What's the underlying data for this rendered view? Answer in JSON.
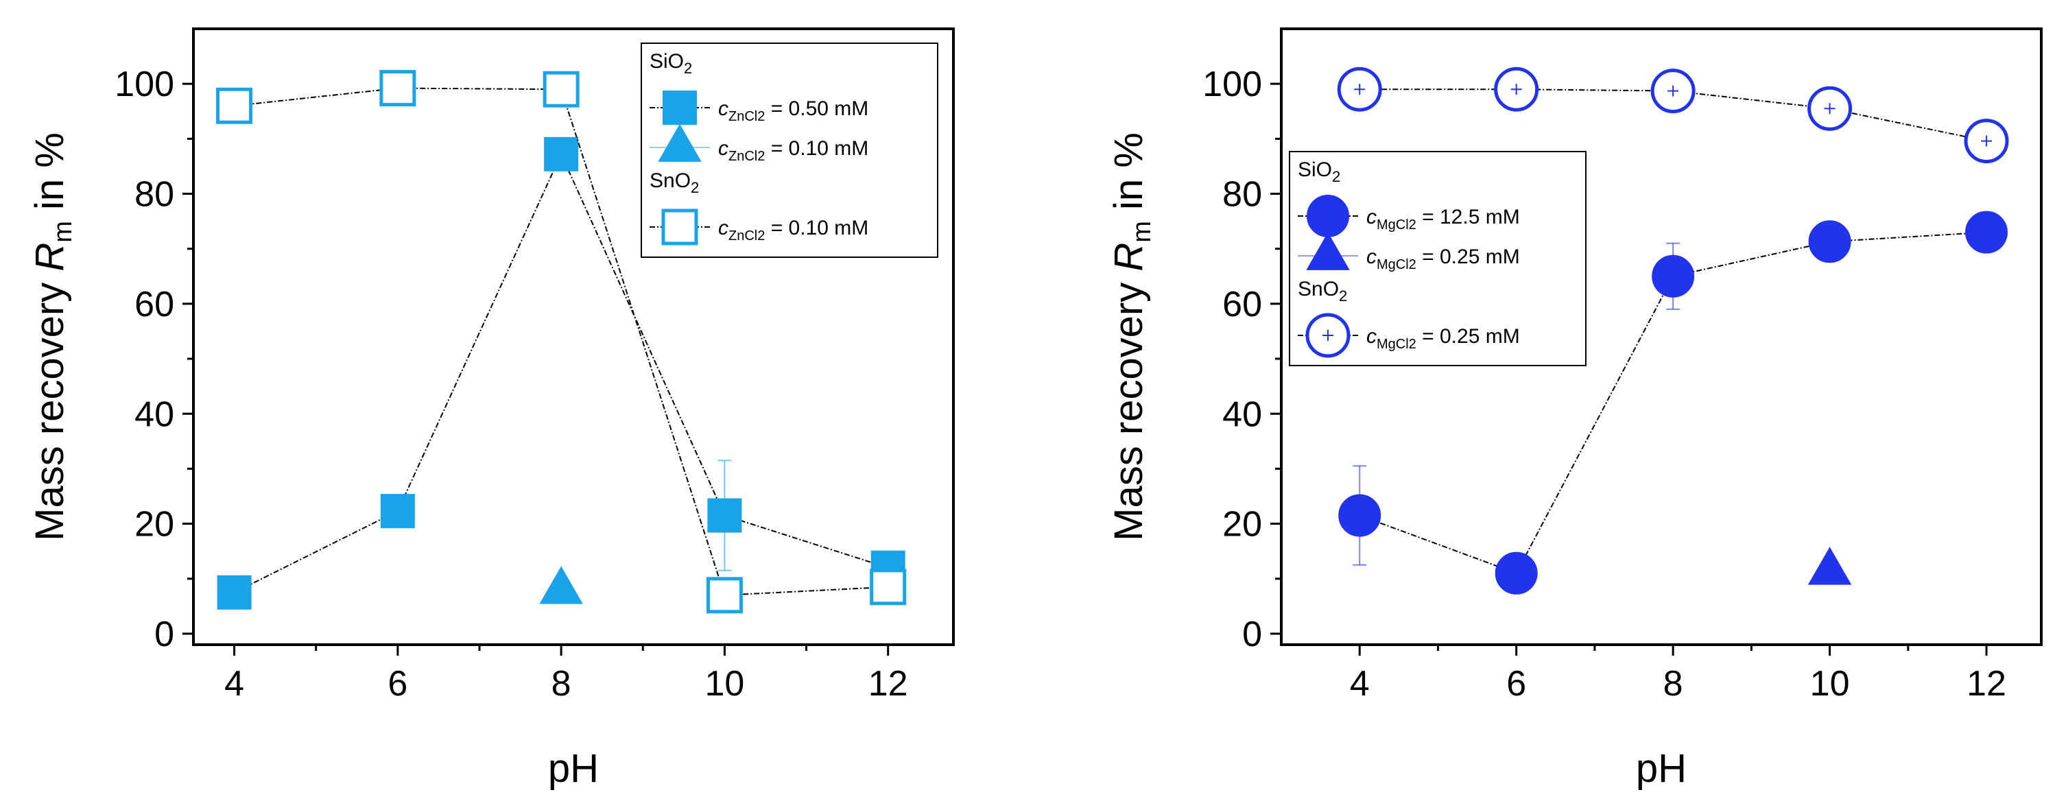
{
  "chart_data": [
    {
      "type": "scatter",
      "panel": "left",
      "xlabel": "pH",
      "ylabel": "Mass recovery R_m in %",
      "ylabel_parts": {
        "main": "Mass recovery ",
        "var": "R",
        "sub": "m",
        "tail": " in %"
      },
      "xlim": [
        3.5,
        12.8
      ],
      "ylim": [
        -2,
        110
      ],
      "xticks": [
        4,
        6,
        8,
        10,
        12
      ],
      "yticks": [
        0,
        20,
        40,
        60,
        80,
        100
      ],
      "color": "#1aa3e8",
      "legend_position": "top-right",
      "legend_groups": [
        "SiO2",
        "SnO2"
      ],
      "series": [
        {
          "name": "SiO2 c_ZnCl2 = 0.50 mM",
          "legend_label": {
            "var": "c",
            "sub": "ZnCl2",
            "text": " = 0.50 mM"
          },
          "group": "SiO2",
          "marker": "square-filled",
          "connected": true,
          "x": [
            4,
            6,
            8,
            10,
            12
          ],
          "y": [
            7.5,
            22.3,
            87.2,
            21.5,
            12.0
          ],
          "err": [
            0.5,
            0.5,
            0.8,
            10.0,
            1.5
          ]
        },
        {
          "name": "SiO2 c_ZnCl2 = 0.10 mM",
          "legend_label": {
            "var": "c",
            "sub": "ZnCl2",
            "text": " = 0.10 mM"
          },
          "group": "SiO2",
          "marker": "triangle-filled",
          "connected": false,
          "x": [
            8
          ],
          "y": [
            8.0
          ],
          "err": [
            0.5
          ]
        },
        {
          "name": "SnO2 c_ZnCl2 = 0.10 mM",
          "legend_label": {
            "var": "c",
            "sub": "ZnCl2",
            "text": " = 0.10 mM"
          },
          "group": "SnO2",
          "marker": "square-open",
          "connected": true,
          "x": [
            4,
            6,
            8,
            10,
            12
          ],
          "y": [
            96.0,
            99.2,
            99.0,
            7.0,
            8.5
          ],
          "err": [
            2.0,
            1.0,
            1.5,
            2.0,
            1.2
          ]
        }
      ]
    },
    {
      "type": "scatter",
      "panel": "right",
      "xlabel": "pH",
      "ylabel": "Mass recovery R_m in %",
      "ylabel_parts": {
        "main": "Mass recovery ",
        "var": "R",
        "sub": "m",
        "tail": " in %"
      },
      "xlim": [
        3.0,
        12.7
      ],
      "ylim": [
        -2,
        110
      ],
      "xticks": [
        4,
        6,
        8,
        10,
        12
      ],
      "yticks": [
        0,
        20,
        40,
        60,
        80,
        100
      ],
      "color": "#2233ee",
      "legend_position": "center-left",
      "legend_groups": [
        "SiO2",
        "SnO2"
      ],
      "series": [
        {
          "name": "SiO2 c_MgCl2 = 12.5 mM",
          "legend_label": {
            "var": "c",
            "sub": "MgCl2",
            "text": " = 12.5 mM"
          },
          "group": "SiO2",
          "marker": "circle-filled",
          "connected": true,
          "x": [
            4,
            6,
            8,
            10,
            12
          ],
          "y": [
            21.5,
            11.0,
            65.0,
            71.3,
            73.0
          ],
          "err": [
            9.0,
            0.5,
            6.0,
            0.8,
            0.5
          ]
        },
        {
          "name": "SiO2 c_MgCl2 = 0.25 mM",
          "legend_label": {
            "var": "c",
            "sub": "MgCl2",
            "text": " = 0.25 mM"
          },
          "group": "SiO2",
          "marker": "triangle-filled",
          "connected": false,
          "x": [
            10
          ],
          "y": [
            11.5
          ],
          "err": [
            1.5
          ]
        },
        {
          "name": "SnO2 c_MgCl2 = 0.25 mM",
          "legend_label": {
            "var": "c",
            "sub": "MgCl2",
            "text": " = 0.25 mM"
          },
          "group": "SnO2",
          "marker": "circle-open",
          "connected": true,
          "x": [
            4,
            6,
            8,
            10,
            12
          ],
          "y": [
            99.0,
            99.0,
            98.7,
            95.5,
            89.6
          ],
          "err": [
            1.0,
            1.0,
            1.5,
            2.5,
            2.0
          ]
        }
      ]
    }
  ]
}
